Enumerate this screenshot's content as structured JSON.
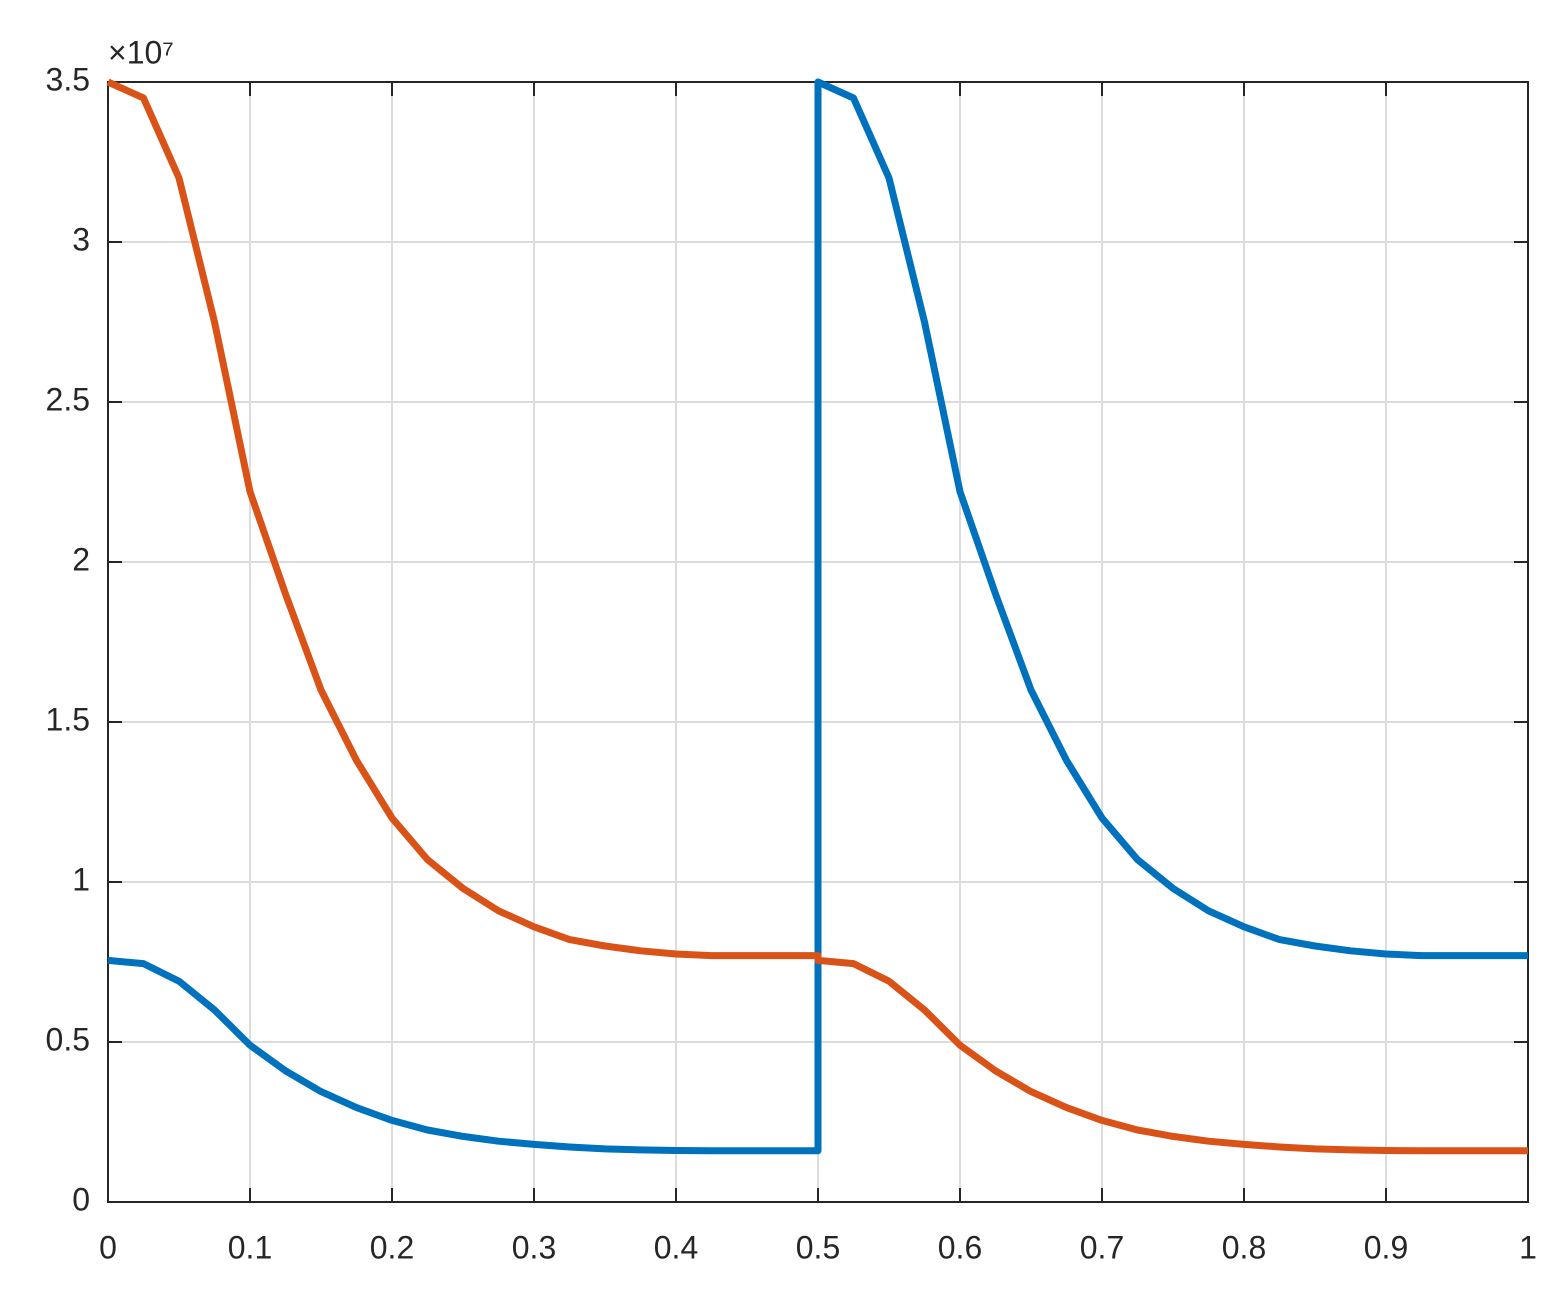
{
  "chart_data": {
    "type": "line",
    "y_multiplier": "×10⁷",
    "x": [
      0,
      0.025,
      0.05,
      0.075,
      0.1,
      0.125,
      0.15,
      0.175,
      0.2,
      0.225,
      0.25,
      0.275,
      0.3,
      0.325,
      0.35,
      0.375,
      0.4,
      0.425,
      0.45,
      0.475,
      0.5,
      0.5,
      0.525,
      0.55,
      0.575,
      0.6,
      0.625,
      0.65,
      0.675,
      0.7,
      0.725,
      0.75,
      0.775,
      0.8,
      0.825,
      0.85,
      0.875,
      0.9,
      0.925,
      0.95,
      0.975,
      1
    ],
    "series": [
      {
        "color": "#0072BD",
        "values": [
          0.755,
          0.745,
          0.69,
          0.6,
          0.49,
          0.41,
          0.345,
          0.295,
          0.255,
          0.225,
          0.205,
          0.19,
          0.18,
          0.172,
          0.166,
          0.163,
          0.161,
          0.16,
          0.16,
          0.16,
          0.16,
          3.5,
          3.45,
          3.2,
          2.75,
          2.22,
          1.9,
          1.6,
          1.38,
          1.2,
          1.07,
          0.98,
          0.91,
          0.86,
          0.82,
          0.8,
          0.785,
          0.775,
          0.77,
          0.77,
          0.77,
          0.77
        ]
      },
      {
        "color": "#D95319",
        "values": [
          3.5,
          3.45,
          3.2,
          2.75,
          2.22,
          1.9,
          1.6,
          1.38,
          1.2,
          1.07,
          0.98,
          0.91,
          0.86,
          0.82,
          0.8,
          0.785,
          0.775,
          0.77,
          0.77,
          0.77,
          0.77,
          0.755,
          0.745,
          0.69,
          0.6,
          0.49,
          0.41,
          0.345,
          0.295,
          0.255,
          0.225,
          0.205,
          0.19,
          0.18,
          0.172,
          0.166,
          0.163,
          0.161,
          0.16,
          0.16,
          0.16,
          0.16
        ]
      }
    ],
    "xlim": [
      0,
      1
    ],
    "xticks": [
      0,
      0.1,
      0.2,
      0.3,
      0.4,
      0.5,
      0.6,
      0.7,
      0.8,
      0.9,
      1
    ],
    "ylim": [
      0,
      3.5
    ],
    "yticks": [
      0,
      0.5,
      1,
      1.5,
      2,
      2.5,
      3,
      3.5
    ],
    "grid": true
  }
}
